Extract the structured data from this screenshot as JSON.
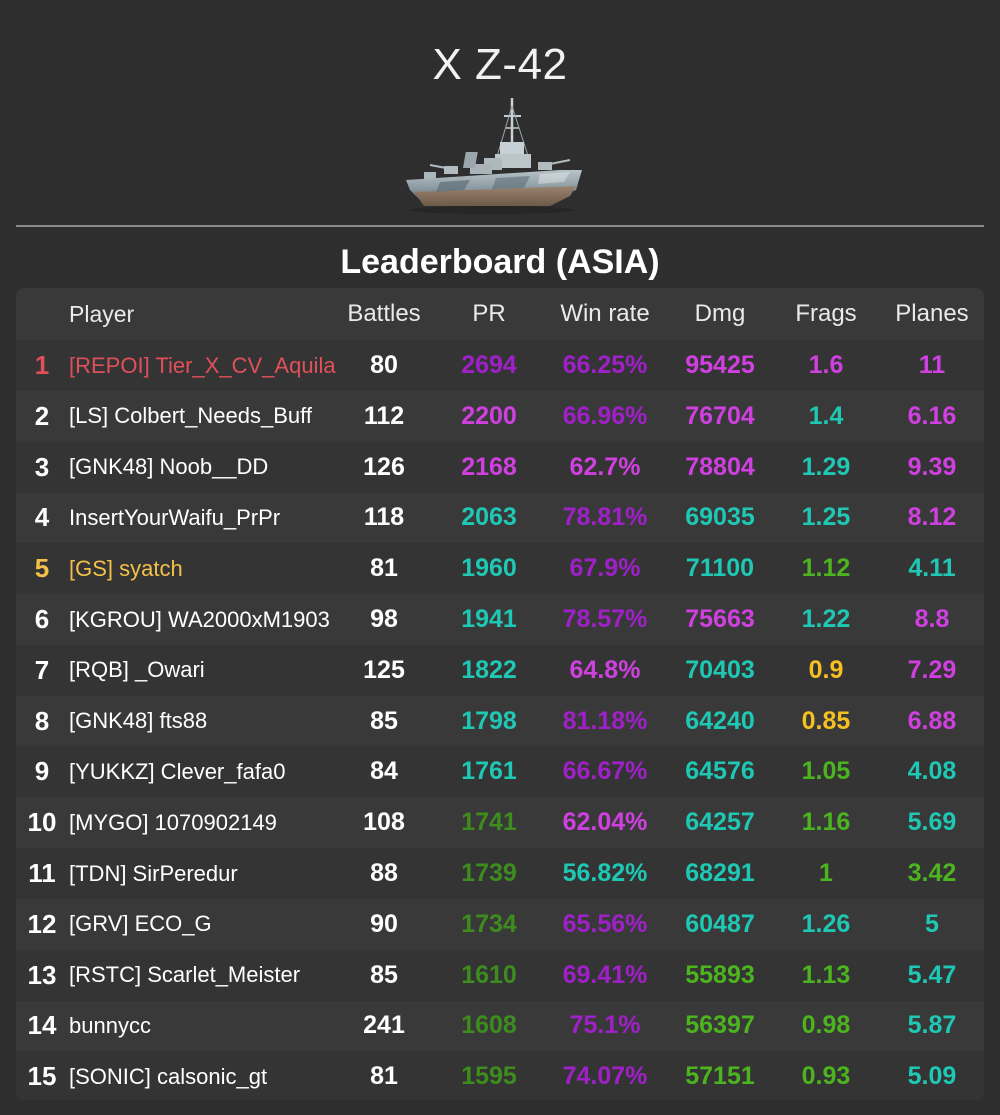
{
  "ship": {
    "title": "X Z-42",
    "image_icon": "destroyer-ship-icon"
  },
  "leaderboard": {
    "title": "Leaderboard (ASIA)",
    "columns": {
      "rank": "",
      "player": "Player",
      "battles": "Battles",
      "pr": "PR",
      "winrate": "Win rate",
      "dmg": "Dmg",
      "frags": "Frags",
      "planes": "Planes"
    },
    "colors": {
      "white": "#ffffff",
      "red": "#e0505a",
      "gold": "#f5c04a",
      "purple": "#a020c8",
      "magenta": "#d040e0",
      "teal": "#1ec8b4",
      "green": "#4cb41e",
      "darkgreen": "#3c8c1e",
      "yellow": "#f5c020"
    },
    "rows": [
      {
        "rank": "1",
        "player": "[REPOI] Tier_X_CV_Aquila",
        "battles": "80",
        "pr": "2694",
        "winrate": "66.25%",
        "dmg": "95425",
        "frags": "1.6",
        "planes": "11",
        "rank_color": "red",
        "player_color": "red",
        "pr_color": "purple",
        "winrate_color": "purple",
        "dmg_color": "magenta",
        "frags_color": "magenta",
        "planes_color": "magenta"
      },
      {
        "rank": "2",
        "player": "[LS] Colbert_Needs_Buff",
        "battles": "112",
        "pr": "2200",
        "winrate": "66.96%",
        "dmg": "76704",
        "frags": "1.4",
        "planes": "6.16",
        "rank_color": "white",
        "player_color": "white",
        "pr_color": "magenta",
        "winrate_color": "purple",
        "dmg_color": "magenta",
        "frags_color": "teal",
        "planes_color": "magenta"
      },
      {
        "rank": "3",
        "player": "[GNK48] Noob__DD",
        "battles": "126",
        "pr": "2168",
        "winrate": "62.7%",
        "dmg": "78804",
        "frags": "1.29",
        "planes": "9.39",
        "rank_color": "white",
        "player_color": "white",
        "pr_color": "magenta",
        "winrate_color": "magenta",
        "dmg_color": "magenta",
        "frags_color": "teal",
        "planes_color": "magenta"
      },
      {
        "rank": "4",
        "player": "InsertYourWaifu_PrPr",
        "battles": "118",
        "pr": "2063",
        "winrate": "78.81%",
        "dmg": "69035",
        "frags": "1.25",
        "planes": "8.12",
        "rank_color": "white",
        "player_color": "white",
        "pr_color": "teal",
        "winrate_color": "purple",
        "dmg_color": "teal",
        "frags_color": "teal",
        "planes_color": "magenta"
      },
      {
        "rank": "5",
        "player": "[GS] syatch",
        "battles": "81",
        "pr": "1960",
        "winrate": "67.9%",
        "dmg": "71100",
        "frags": "1.12",
        "planes": "4.11",
        "rank_color": "gold",
        "player_color": "gold",
        "pr_color": "teal",
        "winrate_color": "purple",
        "dmg_color": "teal",
        "frags_color": "green",
        "planes_color": "teal"
      },
      {
        "rank": "6",
        "player": "[KGROU] WA2000xM1903",
        "battles": "98",
        "pr": "1941",
        "winrate": "78.57%",
        "dmg": "75663",
        "frags": "1.22",
        "planes": "8.8",
        "rank_color": "white",
        "player_color": "white",
        "pr_color": "teal",
        "winrate_color": "purple",
        "dmg_color": "magenta",
        "frags_color": "teal",
        "planes_color": "magenta"
      },
      {
        "rank": "7",
        "player": "[RQB] _Owari",
        "battles": "125",
        "pr": "1822",
        "winrate": "64.8%",
        "dmg": "70403",
        "frags": "0.9",
        "planes": "7.29",
        "rank_color": "white",
        "player_color": "white",
        "pr_color": "teal",
        "winrate_color": "magenta",
        "dmg_color": "teal",
        "frags_color": "yellow",
        "planes_color": "magenta"
      },
      {
        "rank": "8",
        "player": "[GNK48] fts88",
        "battles": "85",
        "pr": "1798",
        "winrate": "81.18%",
        "dmg": "64240",
        "frags": "0.85",
        "planes": "6.88",
        "rank_color": "white",
        "player_color": "white",
        "pr_color": "teal",
        "winrate_color": "purple",
        "dmg_color": "teal",
        "frags_color": "yellow",
        "planes_color": "magenta"
      },
      {
        "rank": "9",
        "player": "[YUKKZ] Clever_fafa0",
        "battles": "84",
        "pr": "1761",
        "winrate": "66.67%",
        "dmg": "64576",
        "frags": "1.05",
        "planes": "4.08",
        "rank_color": "white",
        "player_color": "white",
        "pr_color": "teal",
        "winrate_color": "purple",
        "dmg_color": "teal",
        "frags_color": "green",
        "planes_color": "teal"
      },
      {
        "rank": "10",
        "player": "[MYGO] 1070902149",
        "battles": "108",
        "pr": "1741",
        "winrate": "62.04%",
        "dmg": "64257",
        "frags": "1.16",
        "planes": "5.69",
        "rank_color": "white",
        "player_color": "white",
        "pr_color": "darkgreen",
        "winrate_color": "magenta",
        "dmg_color": "teal",
        "frags_color": "green",
        "planes_color": "teal"
      },
      {
        "rank": "11",
        "player": "[TDN] SirPeredur",
        "battles": "88",
        "pr": "1739",
        "winrate": "56.82%",
        "dmg": "68291",
        "frags": "1",
        "planes": "3.42",
        "rank_color": "white",
        "player_color": "white",
        "pr_color": "darkgreen",
        "winrate_color": "teal",
        "dmg_color": "teal",
        "frags_color": "green",
        "planes_color": "green"
      },
      {
        "rank": "12",
        "player": "[GRV] ECO_G",
        "battles": "90",
        "pr": "1734",
        "winrate": "65.56%",
        "dmg": "60487",
        "frags": "1.26",
        "planes": "5",
        "rank_color": "white",
        "player_color": "white",
        "pr_color": "darkgreen",
        "winrate_color": "purple",
        "dmg_color": "teal",
        "frags_color": "teal",
        "planes_color": "teal"
      },
      {
        "rank": "13",
        "player": "[RSTC] Scarlet_Meister",
        "battles": "85",
        "pr": "1610",
        "winrate": "69.41%",
        "dmg": "55893",
        "frags": "1.13",
        "planes": "5.47",
        "rank_color": "white",
        "player_color": "white",
        "pr_color": "darkgreen",
        "winrate_color": "purple",
        "dmg_color": "green",
        "frags_color": "green",
        "planes_color": "teal"
      },
      {
        "rank": "14",
        "player": "bunnycc",
        "battles": "241",
        "pr": "1608",
        "winrate": "75.1%",
        "dmg": "56397",
        "frags": "0.98",
        "planes": "5.87",
        "rank_color": "white",
        "player_color": "white",
        "pr_color": "darkgreen",
        "winrate_color": "purple",
        "dmg_color": "green",
        "frags_color": "green",
        "planes_color": "teal"
      },
      {
        "rank": "15",
        "player": "[SONIC] calsonic_gt",
        "battles": "81",
        "pr": "1595",
        "winrate": "74.07%",
        "dmg": "57151",
        "frags": "0.93",
        "planes": "5.09",
        "rank_color": "white",
        "player_color": "white",
        "pr_color": "darkgreen",
        "winrate_color": "purple",
        "dmg_color": "green",
        "frags_color": "green",
        "planes_color": "teal"
      }
    ]
  }
}
